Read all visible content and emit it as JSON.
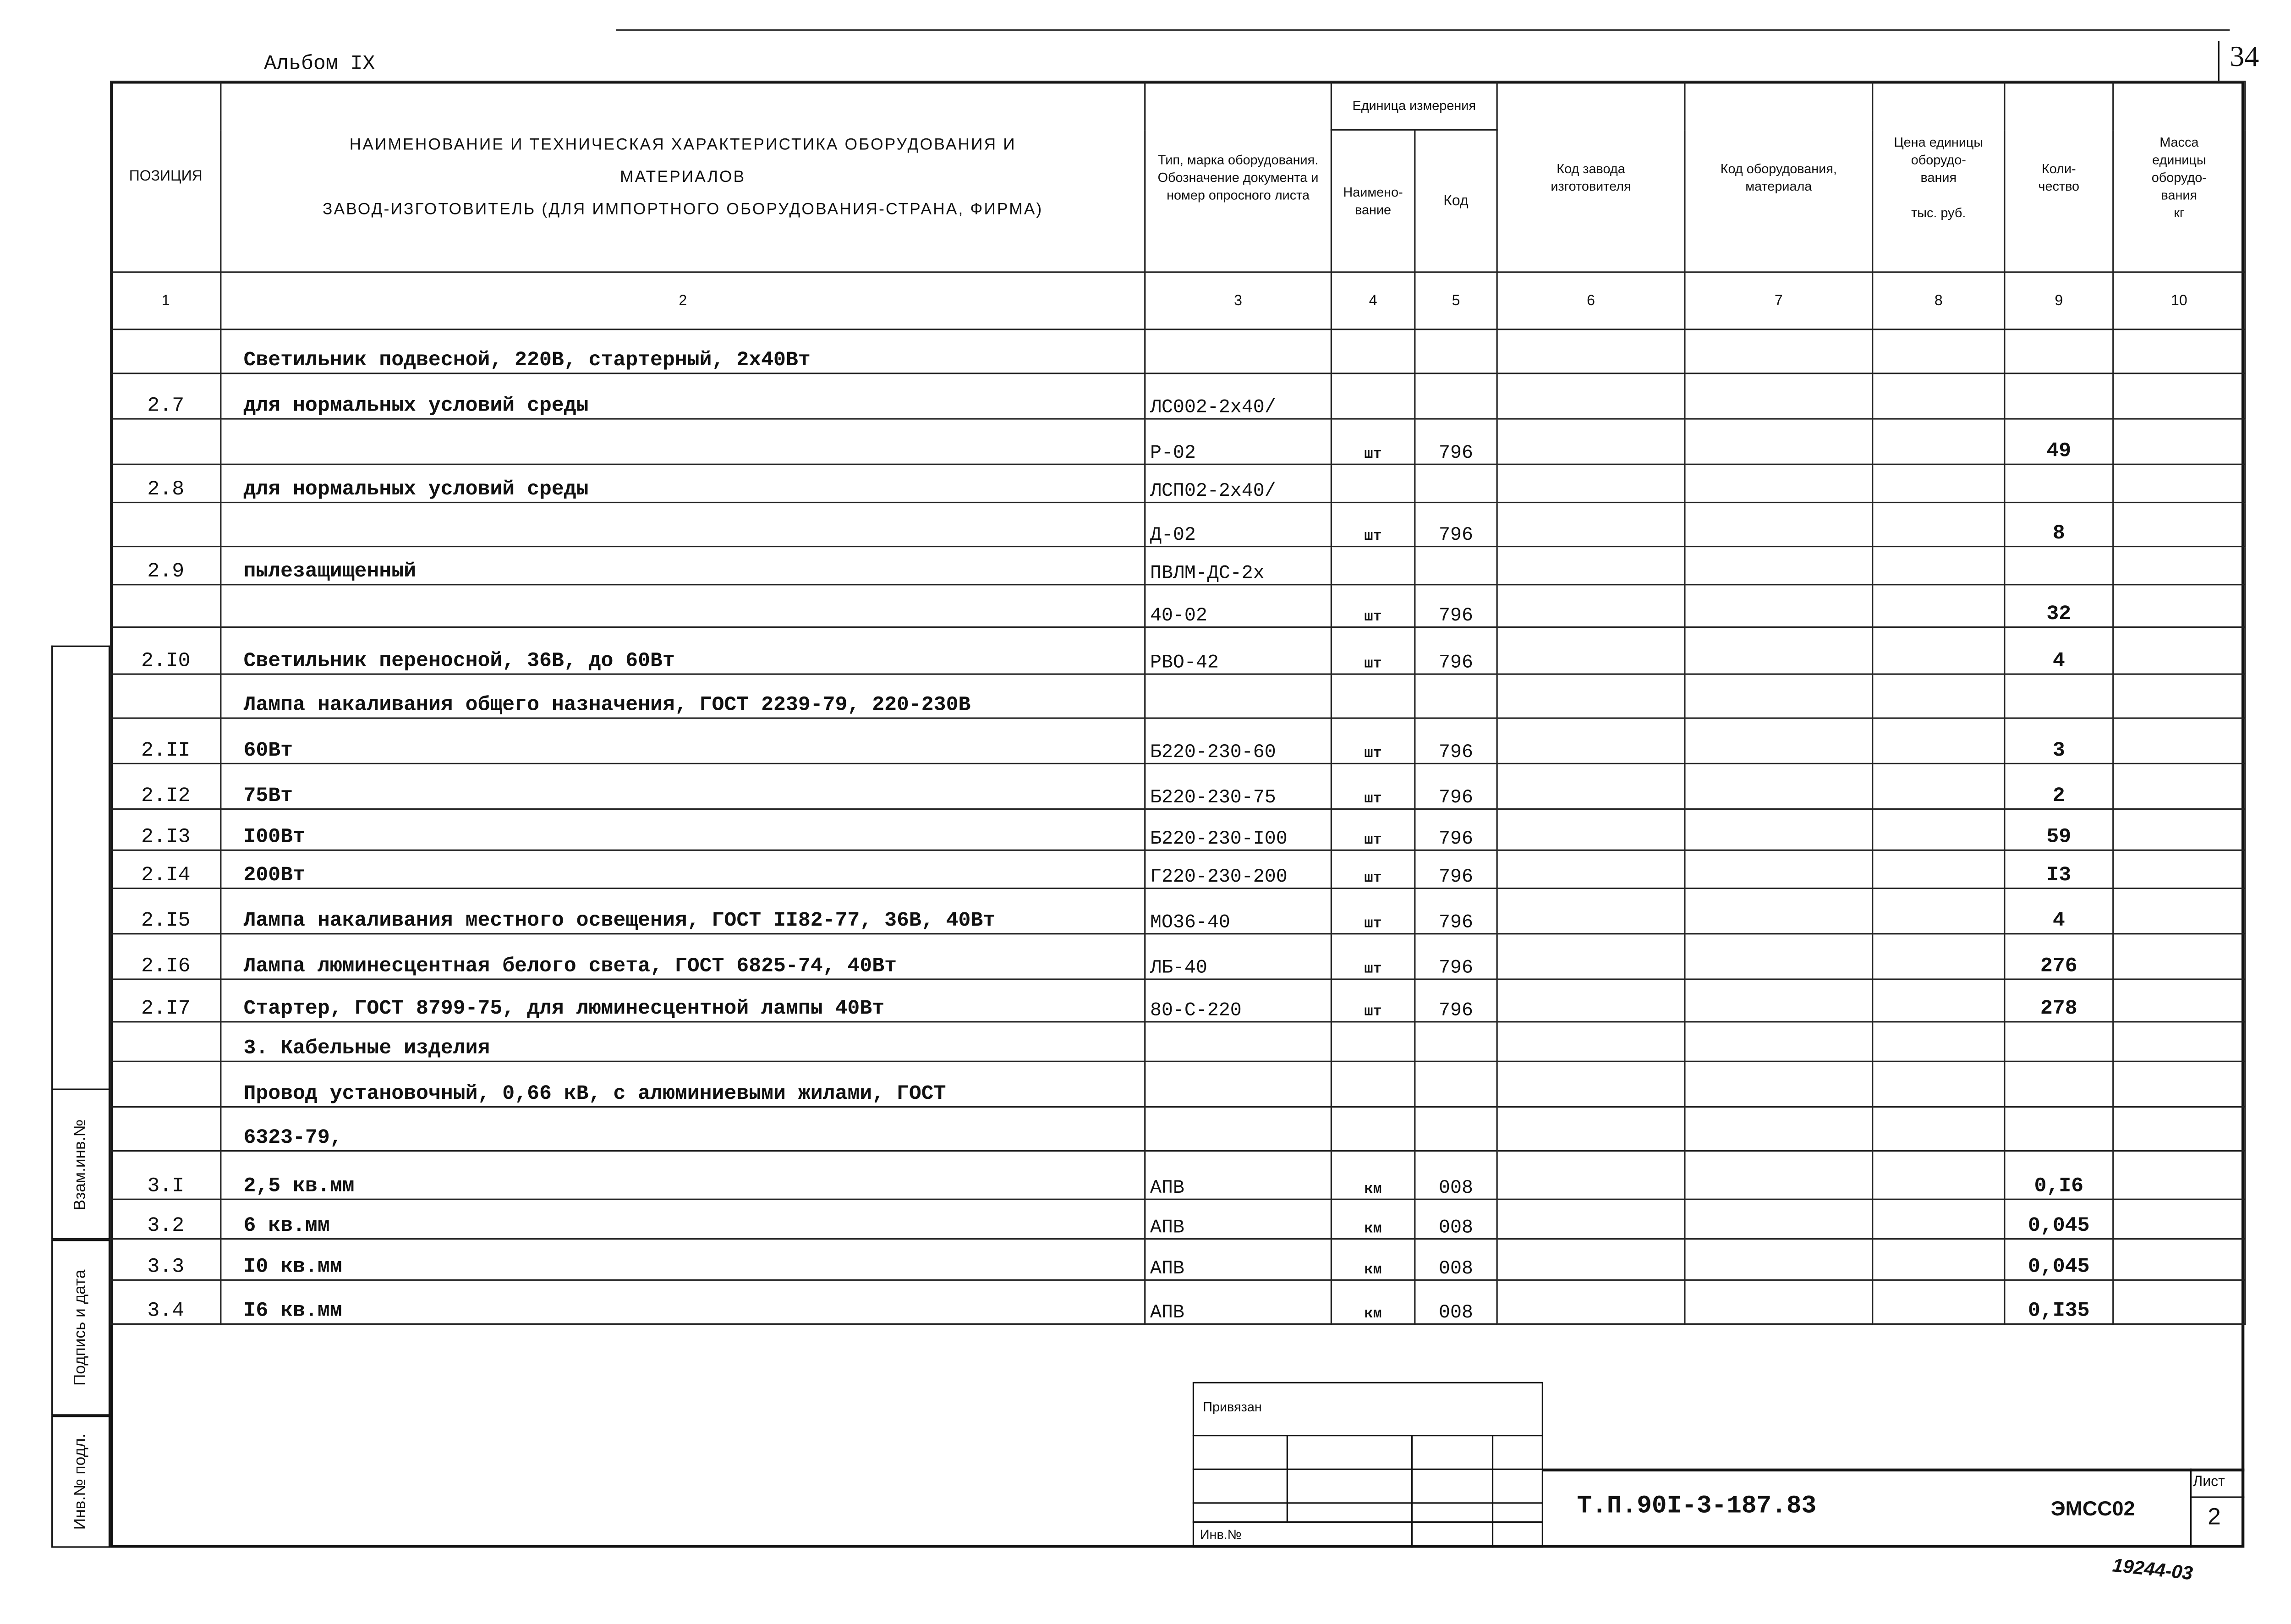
{
  "album": "Альбом IX",
  "sheet_corner_number": "34",
  "header": {
    "col1": "ПОЗИЦИЯ",
    "col2_line1": "НАИМЕНОВАНИЕ И ТЕХНИЧЕСКАЯ ХАРАКТЕРИСТИКА ОБОРУДОВАНИЯ И",
    "col2_line2": "МАТЕРИАЛОВ",
    "col2_line3": "ЗАВОД-ИЗГОТОВИТЕЛЬ (ДЛЯ ИМПОРТНОГО ОБОРУДОВАНИЯ-СТРАНА, ФИРМА)",
    "col3": "Тип, марка оборудования. Обозначение документа и номер опросного листа",
    "unit_group": "Единица измерения",
    "col4": "Наимено-вание",
    "col5": "Код",
    "col6": "Код завода изготовителя",
    "col7": "Код оборудования, материала",
    "col8": "Цена единицы оборудо-вания",
    "col8_unit": "тыс. руб.",
    "col9": "Коли-чество",
    "col10": "Масса единицы оборудо-вания",
    "col10_unit": "кг",
    "numbers": [
      "1",
      "2",
      "3",
      "4",
      "5",
      "6",
      "7",
      "8",
      "9",
      "10"
    ]
  },
  "rows": [
    {
      "pos": "",
      "name": "Светильник подвесной, 220В, стартерный, 2х40Вт",
      "type": "",
      "unit": "",
      "code": "",
      "qty": ""
    },
    {
      "pos": "2.7",
      "name": "для нормальных условий среды",
      "type": "ЛС002-2х40/",
      "unit": "",
      "code": "",
      "qty": ""
    },
    {
      "pos": "",
      "name": "",
      "type": "Р-02",
      "unit": "шт",
      "code": "796",
      "qty": "49"
    },
    {
      "pos": "2.8",
      "name": "для нормальных условий среды",
      "type": "ЛСП02-2х40/",
      "unit": "",
      "code": "",
      "qty": ""
    },
    {
      "pos": "",
      "name": "",
      "type": "Д-02",
      "unit": "шт",
      "code": "796",
      "qty": "8"
    },
    {
      "pos": "2.9",
      "name": "пылезащищенный",
      "type": "ПВЛМ-ДС-2х",
      "unit": "",
      "code": "",
      "qty": ""
    },
    {
      "pos": "",
      "name": "",
      "type": "40-02",
      "unit": "шт",
      "code": "796",
      "qty": "32"
    },
    {
      "pos": "2.I0",
      "name": "Светильник переносной, 36В, до 60Вт",
      "type": "РВО-42",
      "unit": "шт",
      "code": "796",
      "qty": "4"
    },
    {
      "pos": "",
      "name": "Лампа накаливания общего назначения, ГОСТ 2239-79, 220-230В",
      "type": "",
      "unit": "",
      "code": "",
      "qty": ""
    },
    {
      "pos": "2.II",
      "name": "60Вт",
      "type": "Б220-230-60",
      "unit": "шт",
      "code": "796",
      "qty": "3"
    },
    {
      "pos": "2.I2",
      "name": "75Вт",
      "type": "Б220-230-75",
      "unit": "шт",
      "code": "796",
      "qty": "2"
    },
    {
      "pos": "2.I3",
      "name": "I00Вт",
      "type": "Б220-230-I00",
      "unit": "шт",
      "code": "796",
      "qty": "59"
    },
    {
      "pos": "2.I4",
      "name": "200Вт",
      "type": "Г220-230-200",
      "unit": "шт",
      "code": "796",
      "qty": "I3"
    },
    {
      "pos": "2.I5",
      "name": "Лампа накаливания местного освещения, ГОСТ II82-77, 36В, 40Вт",
      "type": "МО36-40",
      "unit": "шт",
      "code": "796",
      "qty": "4"
    },
    {
      "pos": "2.I6",
      "name": "Лампа люминесцентная белого света, ГОСТ 6825-74, 40Вт",
      "type": "ЛБ-40",
      "unit": "шт",
      "code": "796",
      "qty": "276"
    },
    {
      "pos": "2.I7",
      "name": "Стартер, ГОСТ 8799-75, для люминесцентной лампы 40Вт",
      "type": "80-С-220",
      "unit": "шт",
      "code": "796",
      "qty": "278"
    },
    {
      "pos": "",
      "name": "3. Кабельные изделия",
      "type": "",
      "unit": "",
      "code": "",
      "qty": ""
    },
    {
      "pos": "",
      "name": "Провод установочный, 0,66 кВ, с алюминиевыми жилами, ГОСТ",
      "type": "",
      "unit": "",
      "code": "",
      "qty": ""
    },
    {
      "pos": "",
      "name": "6323-79,",
      "type": "",
      "unit": "",
      "code": "",
      "qty": ""
    },
    {
      "pos": "3.I",
      "name": "2,5 кв.мм",
      "type": "АПВ",
      "unit": "км",
      "code": "008",
      "qty": "0,I6"
    },
    {
      "pos": "3.2",
      "name": "6 кв.мм",
      "type": "АПВ",
      "unit": "км",
      "code": "008",
      "qty": "0,045"
    },
    {
      "pos": "3.3",
      "name": "I0 кв.мм",
      "type": "АПВ",
      "unit": "км",
      "code": "008",
      "qty": "0,045"
    },
    {
      "pos": "3.4",
      "name": "I6 кв.мм",
      "type": "АПВ",
      "unit": "км",
      "code": "008",
      "qty": "0,I35"
    }
  ],
  "side_stamp": {
    "replace_inv": "Взам.инв.№",
    "signature_date": "Подпись и дата",
    "inv_original": "Инв.№ подл."
  },
  "title_block": {
    "attached": "Привязан",
    "inv_no": "Инв.№",
    "doc_code": "Т.П.90I-3-187.83",
    "sheet_code": "ЭМСС02",
    "sheet_label": "Лист",
    "sheet_number": "2"
  },
  "handwritten_number": "19244-03"
}
